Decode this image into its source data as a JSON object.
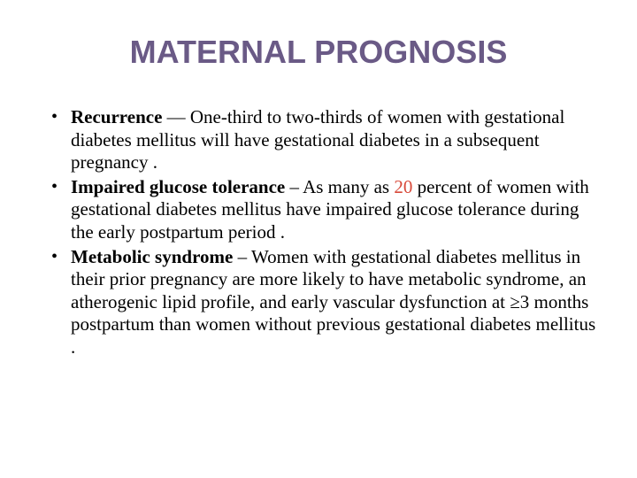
{
  "title": {
    "text": "MATERNAL PROGNOSIS",
    "color": "#6a5a86",
    "fontsize": 36
  },
  "body": {
    "fontsize": 21,
    "line_height": 1.22,
    "text_color": "#000000",
    "highlight_color": "#d84a3a"
  },
  "bullets": [
    {
      "lead": "Recurrence",
      "dash": " — ",
      "body_before": "One-third to two-thirds of women with gestational diabetes mellitus will have gestational diabetes in a subsequent pregnancy .",
      "highlight": "",
      "body_after": ""
    },
    {
      "lead": "Impaired glucose tolerance",
      "dash": " – ",
      "body_before": "As many as ",
      "highlight": "20",
      "body_after": " percent of women with gestational diabetes mellitus have impaired glucose tolerance during the early postpartum period ."
    },
    {
      "lead": "Metabolic syndrome",
      "dash": " – ",
      "body_before": "Women with gestational diabetes mellitus in their prior pregnancy are more likely to have metabolic syndrome, an atherogenic lipid profile, and early vascular dysfunction at ≥3 months postpartum than women without previous gestational diabetes mellitus .",
      "highlight": "",
      "body_after": ""
    }
  ]
}
